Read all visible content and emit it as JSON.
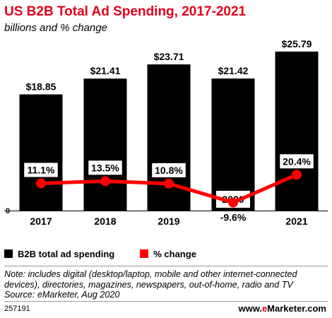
{
  "chart_data": {
    "type": "bar",
    "title": "US B2B Total Ad Spending, 2017-2021",
    "subtitle": "billions and % change",
    "categories": [
      "2017",
      "2018",
      "2019",
      "2020",
      "2021"
    ],
    "series": [
      {
        "name": "B2B total ad spending",
        "type": "bar",
        "values": [
          18.85,
          21.41,
          23.71,
          21.42,
          25.79
        ],
        "labels": [
          "$18.85",
          "$21.41",
          "$23.71",
          "$21.42",
          "$25.79"
        ],
        "color": "#000000"
      },
      {
        "name": "% change",
        "type": "line",
        "values": [
          11.1,
          13.5,
          10.8,
          -9.6,
          20.4
        ],
        "labels": [
          "11.1%",
          "13.5%",
          "10.8%",
          "-9.6%",
          "20.4%"
        ],
        "color": "#ff0000"
      }
    ],
    "y_zero_label": "0",
    "legend_position": "bottom-left",
    "grid": false
  },
  "note": "Note: includes digital (desktop/laptop, mobile and other internet-connected devices), directories, magazines, newspapers, out-of-home, radio and TV",
  "source": "Source: eMarketer, Aug 2020",
  "chart_id": "257191",
  "brand": {
    "prefix": "www.",
    "accent": "e",
    "suffix": "Marketer.com"
  }
}
